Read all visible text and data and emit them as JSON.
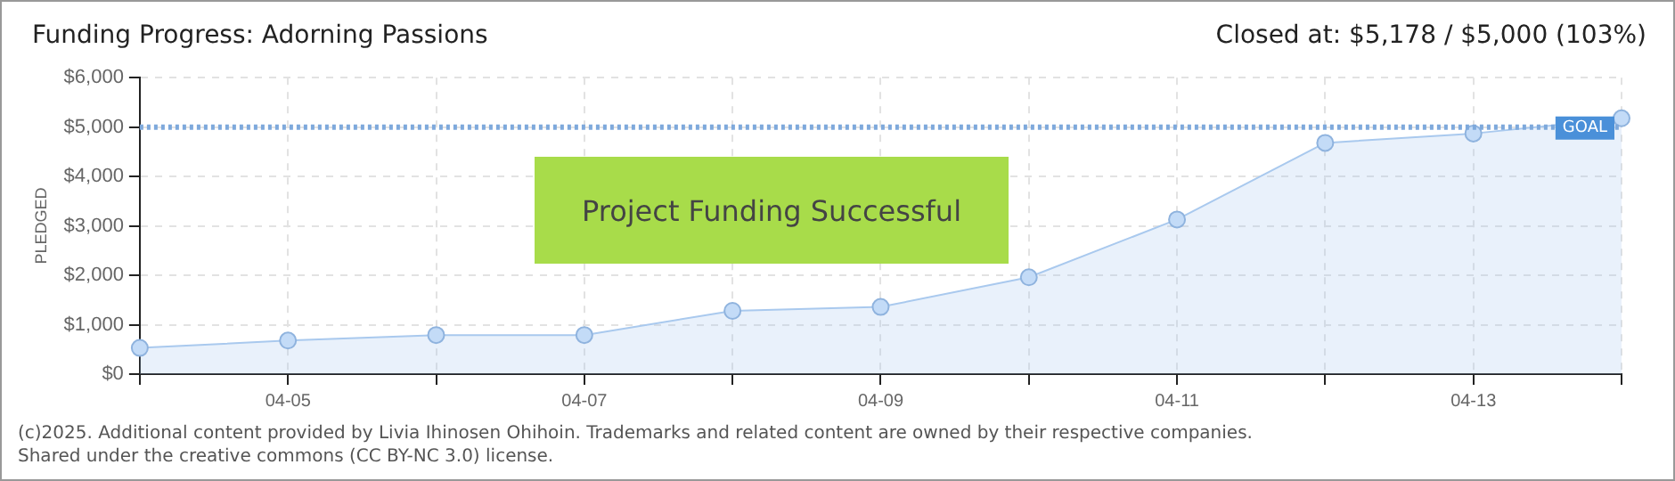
{
  "chart_data": {
    "type": "area",
    "title": "Funding Progress: Adorning Passions",
    "subtitle": "Closed at: $5,178 / $5,000 (103%)",
    "ylabel": "PLEDGED",
    "categories": [
      null,
      "04-05",
      null,
      "04-07",
      null,
      "04-09",
      null,
      "04-11",
      null,
      "04-13",
      null
    ],
    "series": [
      {
        "color": "#a9c9ee",
        "values": [
          530,
          680,
          790,
          790,
          1280,
          1360,
          1960,
          3130,
          4680,
          4870,
          5178
        ]
      }
    ],
    "ylim": [
      0,
      6000
    ],
    "yticks": [
      {
        "value": 0,
        "label": "$0"
      },
      {
        "value": 1000,
        "label": "$1,000"
      },
      {
        "value": 2000,
        "label": "$2,000"
      },
      {
        "value": 3000,
        "label": "$3,000"
      },
      {
        "value": 4000,
        "label": "$4,000"
      },
      {
        "value": 5000,
        "label": "$5,000"
      },
      {
        "value": 6000,
        "label": "$6,000"
      }
    ],
    "ref_lines": [
      {
        "axis": "y",
        "value": 5000,
        "label": "GOAL",
        "color": "#7ea9dc",
        "line_style": "dotted"
      }
    ],
    "grid": true,
    "marker": "circle",
    "legend": false,
    "annotations": [
      "Project Funding Successful",
      "(c)2025. Additional content provided by Livia Ihinosen Ohihoin. Trademarks and related content are owned by their respective companies.",
      "Shared under the creative commons (CC BY-NC 3.0) license."
    ]
  }
}
